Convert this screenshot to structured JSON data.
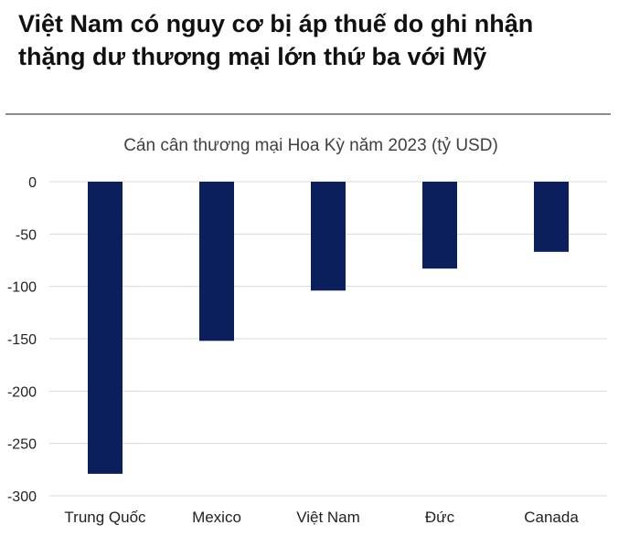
{
  "header": {
    "headline_line1": "Việt Nam có nguy cơ bị áp thuế do ghi nhận",
    "headline_line2": "thặng dư thương mại lớn thứ ba với Mỹ"
  },
  "chart_data": {
    "type": "bar",
    "title": "Cán cân thương mại Hoa Kỳ năm 2023 (tỷ USD)",
    "xlabel": "",
    "ylabel": "",
    "categories": [
      "Trung Quốc",
      "Mexico",
      "Việt Nam",
      "Đức",
      "Canada"
    ],
    "values": [
      -279,
      -152,
      -104,
      -83,
      -67
    ],
    "ylim": [
      -300,
      0
    ],
    "yticks": [
      0,
      -50,
      -100,
      -150,
      -200,
      -250,
      -300
    ],
    "grid": true,
    "bar_color": "#0a1f5c"
  }
}
